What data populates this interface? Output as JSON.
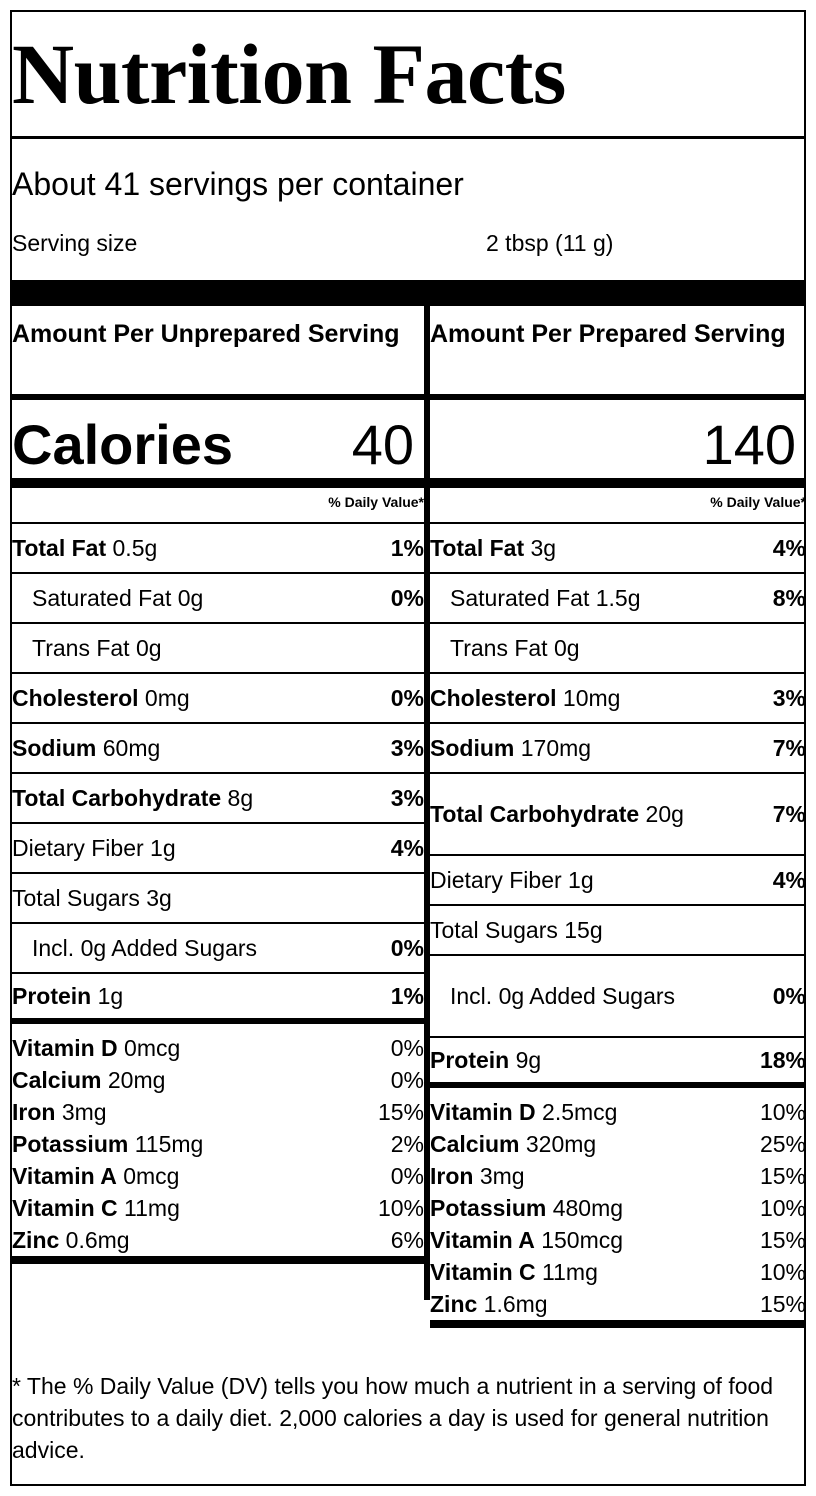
{
  "title": "Nutrition Facts",
  "servings_per_container": "About 41 servings per container",
  "serving_size_label": "Serving size",
  "serving_size_value": "2 tbsp (11 g)",
  "dv_header": "% Daily Value*",
  "calories_label": "Calories",
  "columns": [
    {
      "header": "Amount Per Unprepared Serving",
      "calories": "40",
      "rows": [
        {
          "name": "Total Fat",
          "amount": " 0.5g",
          "dv": "1%",
          "bold": true
        },
        {
          "name": "Saturated Fat",
          "amount": " 0g",
          "dv": "0%",
          "indent": true
        },
        {
          "name": "Trans Fat",
          "amount": " 0g",
          "dv": "",
          "indent": true
        },
        {
          "name": "Cholesterol",
          "amount": " 0mg",
          "dv": "0%",
          "bold": true
        },
        {
          "name": "Sodium",
          "amount": " 60mg",
          "dv": "3%",
          "bold": true
        },
        {
          "name": "Total Carbohydrate",
          "amount": " 8g",
          "dv": "3%",
          "bold": true
        },
        {
          "name": "Dietary Fiber",
          "amount": " 1g",
          "dv": "4%"
        },
        {
          "name": "Total Sugars",
          "amount": " 3g",
          "dv": ""
        },
        {
          "name": "Incl. 0g Added Sugars",
          "amount": "",
          "dv": "0%",
          "indent": true
        },
        {
          "name": "Protein",
          "amount": " 1g",
          "dv": "1%",
          "bold": true,
          "thick": true
        }
      ],
      "vitamins": [
        {
          "name": "Vitamin D",
          "amount": " 0mcg",
          "dv": "0%"
        },
        {
          "name": "Calcium",
          "amount": " 20mg",
          "dv": "0%"
        },
        {
          "name": "Iron",
          "amount": " 3mg",
          "dv": "15%"
        },
        {
          "name": "Potassium",
          "amount": " 115mg",
          "dv": "2%"
        },
        {
          "name": "Vitamin A",
          "amount": " 0mcg",
          "dv": "0%"
        },
        {
          "name": "Vitamin C",
          "amount": " 11mg",
          "dv": "10%"
        },
        {
          "name": "Zinc",
          "amount": " 0.6mg",
          "dv": "6%"
        }
      ]
    },
    {
      "header": "Amount Per Prepared Serving",
      "calories": "140",
      "rows": [
        {
          "name": "Total Fat",
          "amount": " 3g",
          "dv": "4%",
          "bold": true
        },
        {
          "name": "Saturated Fat",
          "amount": " 1.5g",
          "dv": "8%",
          "indent": true
        },
        {
          "name": "Trans Fat",
          "amount": " 0g",
          "dv": "",
          "indent": true
        },
        {
          "name": "Cholesterol",
          "amount": " 10mg",
          "dv": "3%",
          "bold": true
        },
        {
          "name": "Sodium",
          "amount": " 170mg",
          "dv": "7%",
          "bold": true
        },
        {
          "name": "Total Carbohydrate",
          "amount": " 20g",
          "dv": "7%",
          "bold": true,
          "tall": true
        },
        {
          "name": "Dietary Fiber",
          "amount": " 1g",
          "dv": "4%"
        },
        {
          "name": "Total Sugars",
          "amount": " 15g",
          "dv": ""
        },
        {
          "name": "Incl. 0g Added Sugars",
          "amount": "",
          "dv": "0%",
          "indent": true,
          "tall": true
        },
        {
          "name": "Protein",
          "amount": " 9g",
          "dv": "18%",
          "bold": true,
          "thick": true
        }
      ],
      "vitamins": [
        {
          "name": "Vitamin D",
          "amount": " 2.5mcg",
          "dv": "10%"
        },
        {
          "name": "Calcium",
          "amount": " 320mg",
          "dv": "25%"
        },
        {
          "name": "Iron",
          "amount": " 3mg",
          "dv": "15%"
        },
        {
          "name": "Potassium",
          "amount": " 480mg",
          "dv": "10%"
        },
        {
          "name": "Vitamin A",
          "amount": " 150mcg",
          "dv": "15%"
        },
        {
          "name": "Vitamin C",
          "amount": " 11mg",
          "dv": "10%"
        },
        {
          "name": "Zinc",
          "amount": " 1.6mg",
          "dv": "15%"
        }
      ]
    }
  ],
  "footnote": "* The % Daily Value (DV) tells you how much a nutrient in a serving of food contributes to a daily diet. 2,000 calories a day is used for general nutrition advice."
}
